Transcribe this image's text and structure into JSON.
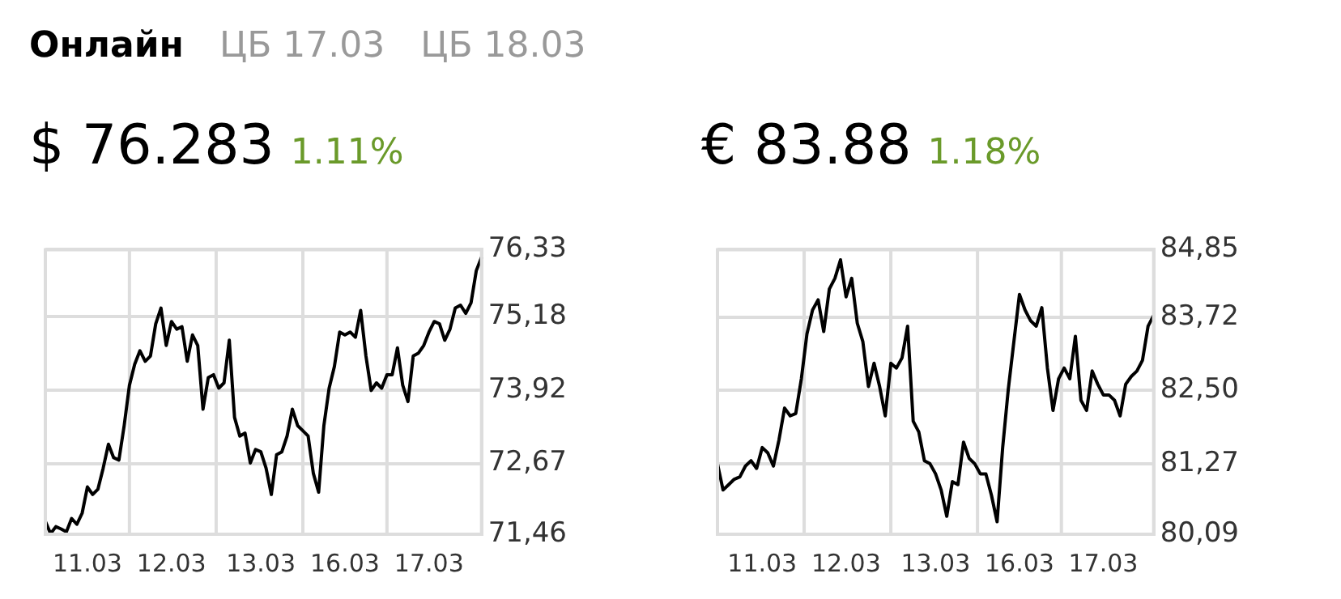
{
  "chart_data": [
    {
      "type": "other",
      "annotations": [
        "Онлайн",
        "ЦБ 17.03",
        "ЦБ 18.03"
      ]
    },
    {
      "type": "line",
      "title": "$ 76.283",
      "subtitle": "1.11%",
      "grid": true,
      "marker": "none",
      "line_style": "solid",
      "categories": [
        null,
        null,
        null,
        null,
        null,
        null,
        null,
        null,
        "11.03",
        null,
        null,
        null,
        null,
        null,
        null,
        null,
        null,
        null,
        null,
        null,
        null,
        null,
        null,
        null,
        "12.03",
        null,
        null,
        null,
        null,
        null,
        null,
        null,
        null,
        null,
        null,
        null,
        null,
        null,
        null,
        null,
        null,
        "13.03",
        null,
        null,
        null,
        null,
        null,
        null,
        null,
        null,
        null,
        null,
        null,
        null,
        null,
        null,
        null,
        "16.03",
        null,
        null,
        null,
        null,
        null,
        null,
        null,
        null,
        null,
        null,
        null,
        null,
        null,
        null,
        null,
        "17.03",
        null,
        null,
        null,
        null,
        null,
        null,
        null,
        null,
        null,
        null
      ],
      "ylim": [
        71.46,
        76.33
      ],
      "yticks": [
        {
          "value": 71.46,
          "label": "71,46"
        },
        {
          "value": 72.67,
          "label": "72,67"
        },
        {
          "value": 73.92,
          "label": "73,92"
        },
        {
          "value": 75.18,
          "label": "75,18"
        },
        {
          "value": 76.33,
          "label": "76,33"
        }
      ],
      "series": [
        {
          "color": "#000000",
          "values": [
            71.68,
            71.47,
            71.59,
            71.55,
            71.5,
            71.73,
            71.63,
            71.82,
            72.27,
            72.14,
            72.23,
            72.59,
            73.0,
            72.77,
            72.73,
            73.32,
            74.01,
            74.37,
            74.6,
            74.42,
            74.51,
            75.06,
            75.33,
            74.69,
            75.1,
            74.97,
            75.01,
            74.42,
            74.87,
            74.69,
            73.6,
            74.14,
            74.19,
            73.96,
            74.05,
            74.78,
            73.46,
            73.14,
            73.19,
            72.68,
            72.91,
            72.87,
            72.59,
            72.14,
            72.82,
            72.87,
            73.14,
            73.6,
            73.32,
            73.23,
            73.14,
            72.5,
            72.18,
            73.32,
            73.96,
            74.33,
            74.92,
            74.87,
            74.92,
            74.83,
            75.29,
            74.51,
            73.92,
            74.05,
            73.96,
            74.19,
            74.19,
            74.65,
            74.01,
            73.73,
            74.51,
            74.56,
            74.69,
            74.92,
            75.1,
            75.06,
            74.78,
            74.97,
            75.33,
            75.38,
            75.24,
            75.42,
            75.97,
            76.2
          ]
        }
      ]
    },
    {
      "type": "line",
      "title": "€ 83.88",
      "subtitle": "1.18%",
      "grid": true,
      "marker": "none",
      "line_style": "solid",
      "categories": [
        null,
        null,
        null,
        null,
        null,
        null,
        null,
        null,
        "11.03",
        null,
        null,
        null,
        null,
        null,
        null,
        null,
        null,
        null,
        null,
        null,
        null,
        null,
        null,
        "12.03",
        null,
        null,
        null,
        null,
        null,
        null,
        null,
        null,
        null,
        null,
        null,
        null,
        null,
        null,
        null,
        "13.03",
        null,
        null,
        null,
        null,
        null,
        null,
        null,
        null,
        null,
        null,
        null,
        null,
        null,
        null,
        "16.03",
        null,
        null,
        null,
        null,
        null,
        null,
        null,
        null,
        null,
        null,
        null,
        null,
        null,
        null,
        "17.03",
        null,
        null,
        null,
        null,
        null,
        null,
        null,
        null,
        null
      ],
      "ylim": [
        80.09,
        84.85
      ],
      "yticks": [
        {
          "value": 80.09,
          "label": "80,09"
        },
        {
          "value": 81.27,
          "label": "81,27"
        },
        {
          "value": 82.5,
          "label": "82,50"
        },
        {
          "value": 83.72,
          "label": "83,72"
        },
        {
          "value": 84.85,
          "label": "84,85"
        }
      ],
      "series": [
        {
          "color": "#000000",
          "values": [
            81.27,
            80.83,
            80.92,
            81.01,
            81.05,
            81.23,
            81.32,
            81.19,
            81.54,
            81.45,
            81.23,
            81.67,
            82.2,
            82.07,
            82.11,
            82.69,
            83.44,
            83.84,
            84.01,
            83.48,
            84.19,
            84.37,
            84.68,
            84.06,
            84.37,
            83.62,
            83.31,
            82.56,
            82.95,
            82.56,
            82.07,
            82.95,
            82.87,
            83.04,
            83.57,
            81.98,
            81.8,
            81.32,
            81.27,
            81.1,
            80.83,
            80.39,
            80.97,
            80.92,
            81.63,
            81.36,
            81.27,
            81.1,
            81.1,
            80.74,
            80.3,
            81.54,
            82.51,
            83.31,
            84.1,
            83.84,
            83.66,
            83.57,
            83.88,
            82.87,
            82.16,
            82.69,
            82.87,
            82.69,
            83.4,
            82.33,
            82.16,
            82.82,
            82.6,
            82.42,
            82.42,
            82.33,
            82.07,
            82.6,
            82.73,
            82.82,
            83.0,
            83.57,
            83.75
          ]
        }
      ]
    }
  ]
}
